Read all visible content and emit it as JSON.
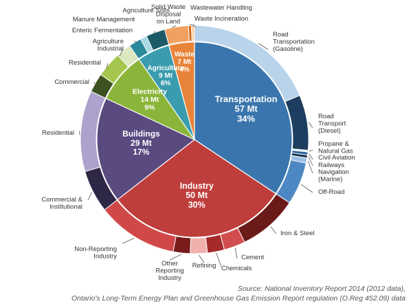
{
  "chart_data": {
    "type": "pie",
    "title": "",
    "unit": "Mt",
    "sectors": [
      {
        "name": "Transportation",
        "value": 57,
        "percent": "34%",
        "value_label": "57 Mt",
        "color": "#3a76ad",
        "subsectors": [
          {
            "name": "Road Transportation (Gasoline)",
            "lines": [
              "Road",
              "Transportation",
              "(Gasoline)"
            ],
            "value": 31,
            "color": "#b9d3ea"
          },
          {
            "name": "Road Transport (Diesel)",
            "lines": [
              "Road",
              "Transport",
              "(Diesel)"
            ],
            "value": 13,
            "color": "#1d3e60"
          },
          {
            "name": "Propane & Natural Gas",
            "lines": [
              "Propane &",
              "Natural Gas"
            ],
            "value": 0.4,
            "color": "#ddeaf6"
          },
          {
            "name": "Civil Aviation",
            "lines": [
              "Civil Aviation"
            ],
            "value": 0.7,
            "color": "#2c63a0"
          },
          {
            "name": "Railways",
            "lines": [
              "Railways"
            ],
            "value": 0.7,
            "color": "#12314f"
          },
          {
            "name": "Navigation (Marine)",
            "lines": [
              "Navigation",
              "(Marine)"
            ],
            "value": 1.2,
            "color": "#9cc0e3"
          },
          {
            "name": "Off-Road",
            "lines": [
              "Off-Road"
            ],
            "value": 10,
            "color": "#4e88c4"
          }
        ]
      },
      {
        "name": "Industry",
        "value": 50,
        "percent": "30%",
        "value_label": "50 Mt",
        "color": "#be3e3c",
        "subsectors": [
          {
            "name": "Iron & Steel",
            "lines": [
              "Iron & Steel"
            ],
            "value": 14,
            "color": "#6b1a1a"
          },
          {
            "name": "Cement",
            "lines": [
              "Cement"
            ],
            "value": 5,
            "color": "#d24e4e"
          },
          {
            "name": "Chemicals",
            "lines": [
              "Chemicals"
            ],
            "value": 4,
            "color": "#a52a2a"
          },
          {
            "name": "Refining",
            "lines": [
              "Refining"
            ],
            "value": 4,
            "color": "#f0b0ae"
          },
          {
            "name": "Other Reporting Industry",
            "lines": [
              "Other",
              "Reporting",
              "Industry"
            ],
            "value": 4,
            "color": "#7a1c1c"
          },
          {
            "name": "Non-Reporting Industry",
            "lines": [
              "Non-Reporting",
              "Industry"
            ],
            "value": 19,
            "color": "#d04848"
          }
        ]
      },
      {
        "name": "Buildings",
        "value": 29,
        "percent": "17%",
        "value_label": "29 Mt",
        "color": "#5a4a80",
        "subsectors": [
          {
            "name": "Commercial & Institutional",
            "lines": [
              "Commercial &",
              "Institutional"
            ],
            "value": 10,
            "color": "#2f2746"
          },
          {
            "name": "Residential",
            "lines": [
              "Residential"
            ],
            "value": 19,
            "color": "#ada2cb"
          }
        ]
      },
      {
        "name": "Electricity",
        "value": 14,
        "percent": "9%",
        "value_label": "14 Mt",
        "color": "#8bb53a",
        "subsectors": [
          {
            "name": "Commercial",
            "lines": [
              "Commercial"
            ],
            "value": 4.5,
            "color": "#3d5220"
          },
          {
            "name": "Residential",
            "lines": [
              "Residential"
            ],
            "value": 6,
            "color": "#a4c64f"
          },
          {
            "name": "Agriculture Industrial",
            "lines": [
              "Agriculture",
              "Industrial"
            ],
            "value": 3.5,
            "color": "#dce8bf"
          }
        ]
      },
      {
        "name": "Agriculture",
        "value": 9,
        "percent": "6%",
        "value_label": "9 Mt",
        "color": "#3a9cae",
        "subsectors": [
          {
            "name": "Enteric Fermentation",
            "lines": [
              "Enteric Fermentation"
            ],
            "value": 3,
            "color": "#2a8a9c"
          },
          {
            "name": "Manure Management",
            "lines": [
              "Manure Management"
            ],
            "value": 1.5,
            "color": "#a8d8e2"
          },
          {
            "name": "Agriculture Soils",
            "lines": [
              "Agriculture Soils"
            ],
            "value": 4.5,
            "color": "#1d5a68"
          }
        ]
      },
      {
        "name": "Waste",
        "value": 7,
        "percent": "4%",
        "value_label": "7 Mt",
        "color": "#e8843a",
        "subsectors": [
          {
            "name": "Solid Waste Disposal on Land",
            "lines": [
              "Solid Waste",
              "Disposal",
              "on Land"
            ],
            "value": 5.6,
            "color": "#f0a060"
          },
          {
            "name": "Wastewater Handling",
            "lines": [
              "Wastewater Handling"
            ],
            "value": 0.7,
            "color": "#c96a20"
          },
          {
            "name": "Waste Incineration",
            "lines": [
              "Waste Incineration"
            ],
            "value": 0.7,
            "color": "#fbd3a8"
          }
        ]
      }
    ],
    "source": "Source: National Inventory Report 2014 (2012 data),",
    "source_line2": "Ontario's Long-Term Energy Plan and Greenhouse Gas Emission Report regulation (O.Reg 452.09) data"
  }
}
